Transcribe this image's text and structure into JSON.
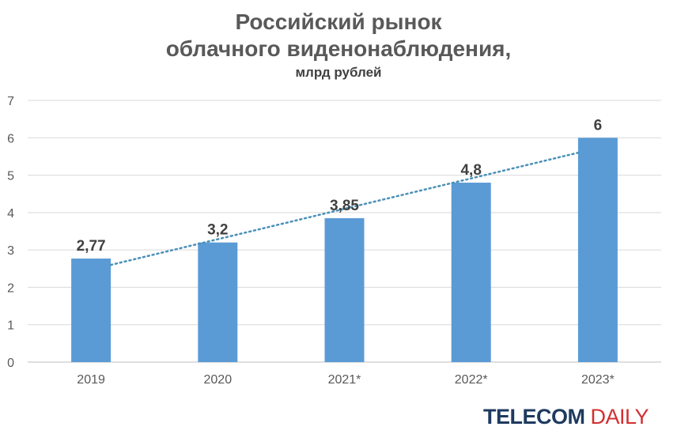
{
  "chart_data": {
    "type": "bar",
    "title": [
      "Российский рынок",
      "облачного виденонаблюдения,"
    ],
    "subtitle": "млрд рублей",
    "categories": [
      "2019",
      "2020",
      "2021*",
      "2022*",
      "2023*"
    ],
    "values": [
      2.77,
      3.2,
      3.85,
      4.8,
      6
    ],
    "data_labels": [
      "2,77",
      "3,2",
      "3,85",
      "4,8",
      "6"
    ],
    "yticks": [
      "0",
      "1",
      "2",
      "3",
      "4",
      "5",
      "6",
      "7"
    ],
    "ylim": [
      0,
      7
    ],
    "grid": true,
    "trendline": {
      "type": "linear",
      "style": "dotted",
      "start": 2.6,
      "end": 5.6
    },
    "colors": {
      "bar": "#5b9bd5",
      "trend": "#4a90b8",
      "grid": "#d9d9d9",
      "axis_text": "#595959",
      "label_text": "#404040"
    }
  },
  "brand": {
    "part1": "TELECOM",
    "part2": "DAILY"
  }
}
